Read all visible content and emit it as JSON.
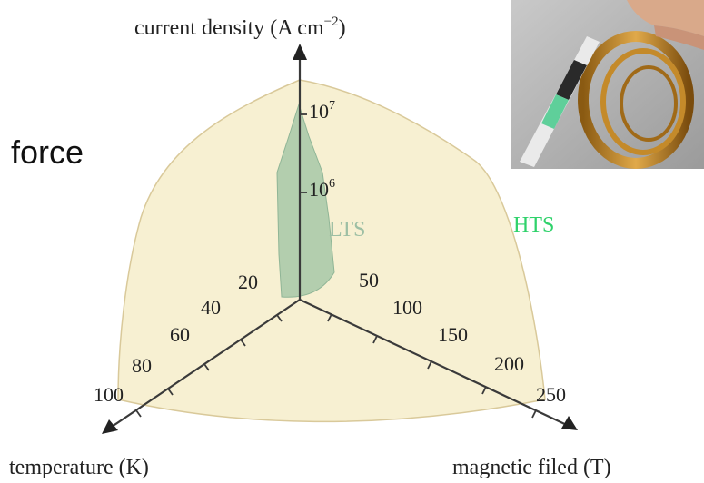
{
  "side_label": "force",
  "axes": {
    "current_density": {
      "label": "current density (A cm",
      "unit_sup": "−2",
      "label_close": ")",
      "ticks": [
        {
          "base": "10",
          "exp": "7"
        },
        {
          "base": "10",
          "exp": "6"
        }
      ]
    },
    "temperature": {
      "label": "temperature (K)",
      "ticks": [
        "20",
        "40",
        "60",
        "80",
        "100"
      ]
    },
    "magnetic_field": {
      "label": "magnetic filed (T)",
      "ticks": [
        "50",
        "100",
        "150",
        "200",
        "250"
      ]
    }
  },
  "regions": {
    "lts": {
      "label": "LTS",
      "color": "#9dbfa4"
    },
    "hts": {
      "label": "HTS",
      "color": "#2fd26b"
    }
  },
  "colors": {
    "hts_fill": "#f7f0d2",
    "hts_edge": "#d9c99a",
    "lts_fill": "#a7c8a8",
    "axis": "#3a3a3a"
  },
  "photo": {
    "icon": "superconducting-tape-photo-icon"
  }
}
